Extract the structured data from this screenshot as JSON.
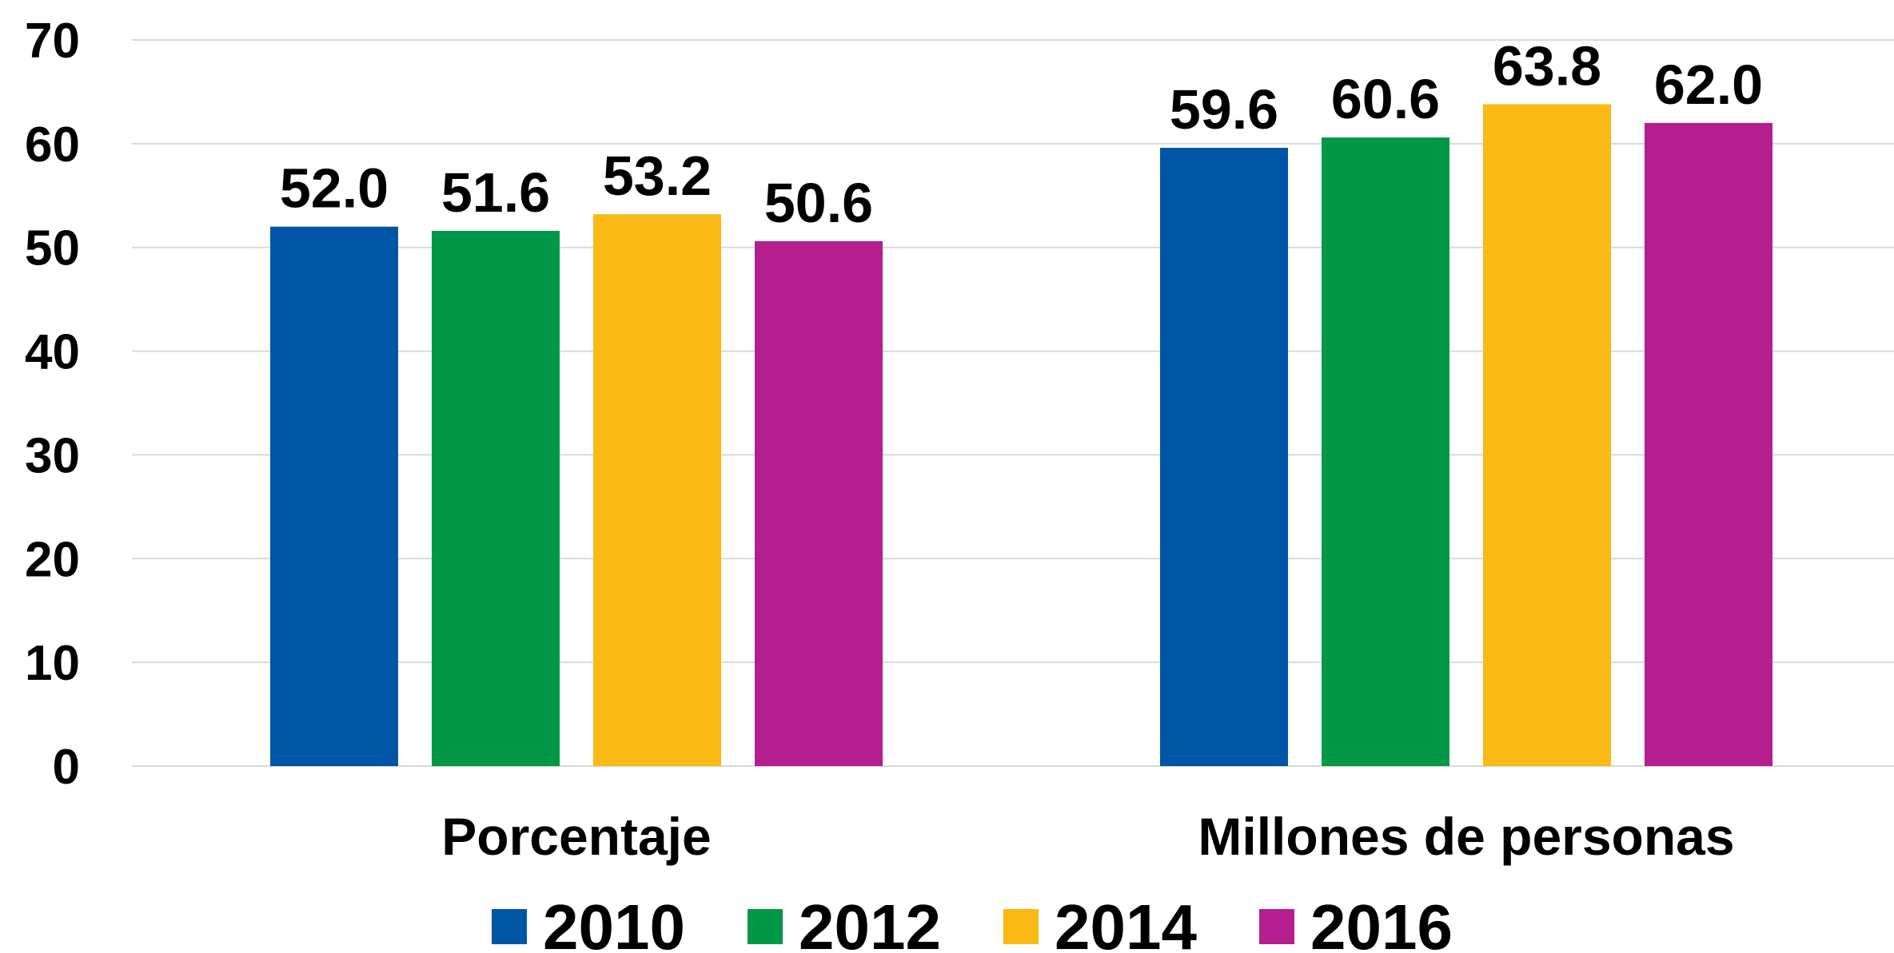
{
  "chart_data": {
    "type": "bar",
    "categories": [
      "Porcentaje",
      "Millones de personas"
    ],
    "series": [
      {
        "name": "2010",
        "color": "#0055A5",
        "values": [
          52.0,
          59.6
        ]
      },
      {
        "name": "2012",
        "color": "#009846",
        "values": [
          51.6,
          60.6
        ]
      },
      {
        "name": "2014",
        "color": "#FBB915",
        "values": [
          53.2,
          63.8
        ]
      },
      {
        "name": "2016",
        "color": "#B41E8E",
        "values": [
          50.6,
          62.0
        ]
      }
    ],
    "value_labels": [
      [
        "52.0",
        "51.6",
        "53.2",
        "50.6"
      ],
      [
        "59.6",
        "60.6",
        "63.8",
        "62.0"
      ]
    ],
    "y_ticks": [
      "0",
      "10",
      "20",
      "30",
      "40",
      "50",
      "60",
      "70"
    ],
    "ylim": [
      0,
      70
    ],
    "grid": true,
    "legend_position": "bottom"
  }
}
